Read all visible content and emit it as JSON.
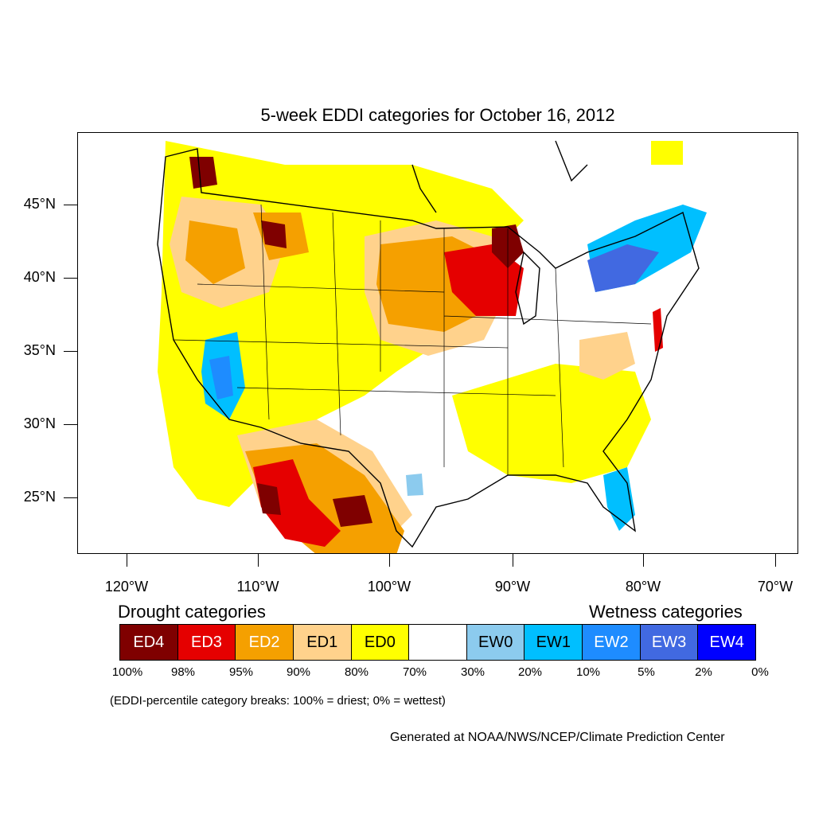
{
  "title": "5-week EDDI categories for October 16, 2012",
  "lat_labels": [
    "45°N",
    "40°N",
    "35°N",
    "30°N",
    "25°N"
  ],
  "lon_labels": [
    "120°W",
    "110°W",
    "100°W",
    "90°W",
    "80°W",
    "70°W"
  ],
  "legend": {
    "drought_heading": "Drought categories",
    "wetness_heading": "Wetness categories",
    "categories": [
      {
        "label": "ED4",
        "color": "#7f0000",
        "text_color": "#ffffff"
      },
      {
        "label": "ED3",
        "color": "#e50000",
        "text_color": "#ffffff"
      },
      {
        "label": "ED2",
        "color": "#f5a000",
        "text_color": "#ffffff"
      },
      {
        "label": "ED1",
        "color": "#ffd28c",
        "text_color": "#000000"
      },
      {
        "label": "ED0",
        "color": "#ffff00",
        "text_color": "#000000"
      },
      {
        "label": "",
        "color": "#ffffff",
        "text_color": "#000000"
      },
      {
        "label": "EW0",
        "color": "#8ccbee",
        "text_color": "#000000"
      },
      {
        "label": "EW1",
        "color": "#00bfff",
        "text_color": "#000000"
      },
      {
        "label": "EW2",
        "color": "#1e8cff",
        "text_color": "#ffffff"
      },
      {
        "label": "EW3",
        "color": "#4169e1",
        "text_color": "#ffffff"
      },
      {
        "label": "EW4",
        "color": "#0000ff",
        "text_color": "#ffffff"
      }
    ],
    "breaks": [
      "100%",
      "98%",
      "95%",
      "90%",
      "80%",
      "70%",
      "30%",
      "20%",
      "10%",
      "5%",
      "2%",
      "0%"
    ],
    "note": "(EDDI-percentile category breaks: 100% = driest; 0% = wettest)"
  },
  "credit": "Generated at NOAA/NWS/NCEP/Climate Prediction Center"
}
